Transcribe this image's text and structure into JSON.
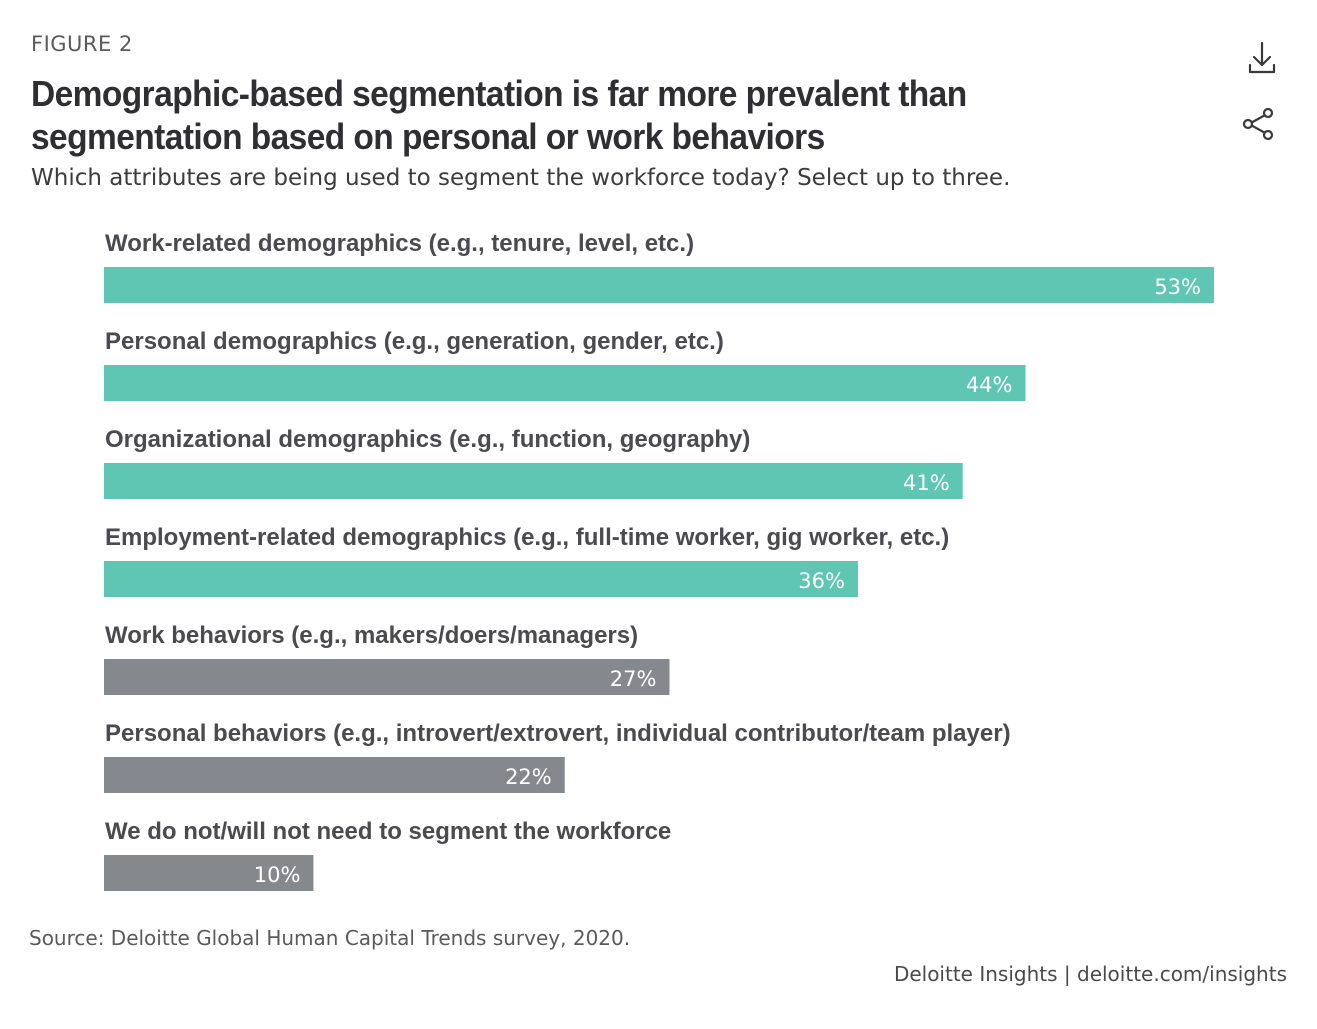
{
  "figure_label": "FIGURE 2",
  "title": "Demographic-based segmentation is far more prevalent than segmentation based on personal or work behaviors",
  "subtitle": "Which attributes are being used to segment the workforce today? Select up to three.",
  "actions": {
    "download_icon": "download-icon",
    "share_icon": "share-icon"
  },
  "colors": {
    "demographic": "#5ec6b2",
    "behavior": "#85888c"
  },
  "chart_data": {
    "type": "bar",
    "orientation": "horizontal",
    "categories": [
      "Work-related demographics (e.g., tenure, level, etc.)",
      "Personal demographics (e.g., generation, gender, etc.)",
      "Organizational demographics (e.g., function, geography)",
      "Employment-related demographics (e.g., full-time worker, gig worker, etc.)",
      "Work behaviors (e.g., makers/doers/managers)",
      "Personal behaviors (e.g., introvert/extrovert, individual contributor/team player)",
      "We do not/will not need to segment the workforce"
    ],
    "values": [
      53,
      44,
      41,
      36,
      27,
      22,
      10
    ],
    "value_labels": [
      "53%",
      "44%",
      "41%",
      "36%",
      "27%",
      "22%",
      "10%"
    ],
    "bar_colors": [
      "#5ec6b2",
      "#5ec6b2",
      "#5ec6b2",
      "#5ec6b2",
      "#85888c",
      "#85888c",
      "#85888c"
    ],
    "unit": "%",
    "xlim": [
      0,
      53
    ],
    "grid": false,
    "legend": "none"
  },
  "source": "Source: Deloitte Global Human Capital Trends survey, 2020.",
  "credit": {
    "brand": "Deloitte Insights",
    "separator": "|",
    "link": "deloitte.com/insights"
  }
}
